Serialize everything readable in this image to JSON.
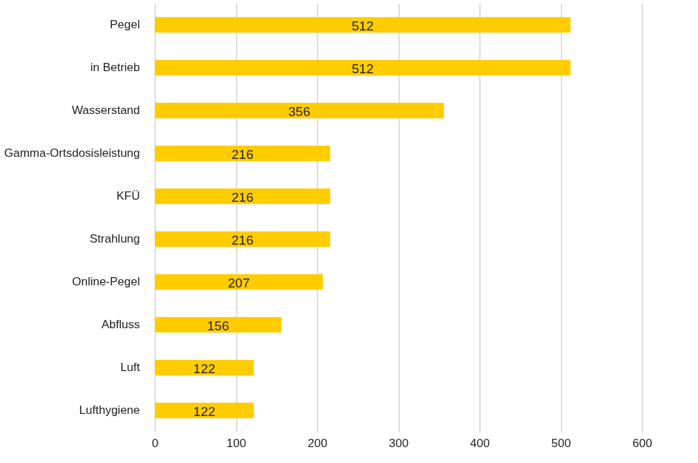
{
  "chart_data": {
    "type": "bar",
    "orientation": "horizontal",
    "categories": [
      "Pegel",
      "in Betrieb",
      "Wasserstand",
      "Gamma-Ortsdosisleistung",
      "KFÜ",
      "Strahlung",
      "Online-Pegel",
      "Abfluss",
      "Luft",
      "Lufthygiene"
    ],
    "values": [
      512,
      512,
      356,
      216,
      216,
      216,
      207,
      156,
      122,
      122
    ],
    "color": "#ffcc00",
    "xlim": [
      0,
      600
    ],
    "xticks": [
      0,
      100,
      200,
      300,
      400,
      500,
      600
    ],
    "grid": "x",
    "data_labels": true
  }
}
